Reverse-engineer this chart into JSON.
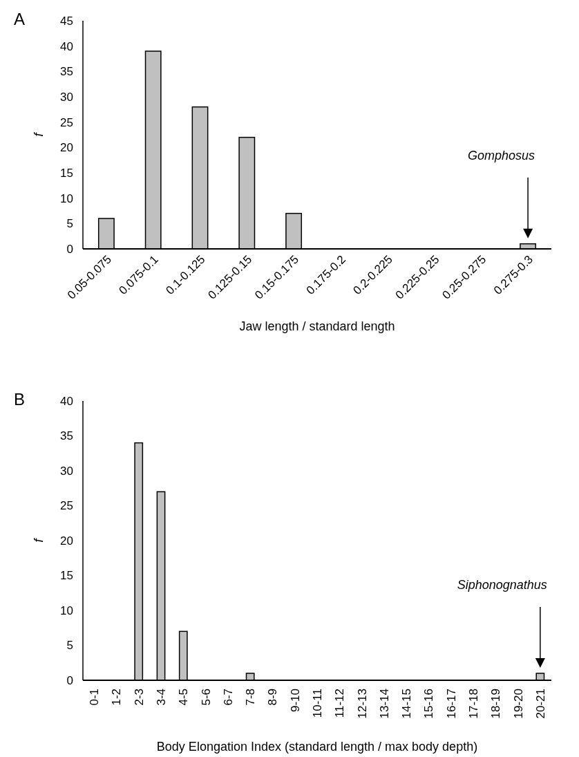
{
  "chart_data": [
    {
      "type": "bar",
      "title": "A",
      "xlabel": "Jaw length / standard length",
      "ylabel": "f",
      "categories": [
        "0.05-0.075",
        "0.075-0.1",
        "0.1-0.125",
        "0.125-0.15",
        "0.15-0.175",
        "0.175-0.2",
        "0.2-0.225",
        "0.225-0.25",
        "0.25-0.275",
        "0.275-0.3"
      ],
      "values": [
        6,
        39,
        28,
        22,
        7,
        0,
        0,
        0,
        0,
        1
      ],
      "color": "#c0c0c0",
      "ylim": [
        0,
        45
      ],
      "yticks": [
        0,
        5,
        10,
        15,
        20,
        25,
        30,
        35,
        40,
        45
      ],
      "grid": false,
      "annotations": [
        "Gomphosus"
      ]
    },
    {
      "type": "bar",
      "title": "B",
      "xlabel": "Body Elongation Index (standard length / max body depth)",
      "ylabel": "f",
      "categories": [
        "0-1",
        "1-2",
        "2-3",
        "3-4",
        "4-5",
        "5-6",
        "6-7",
        "7-8",
        "8-9",
        "9-10",
        "10-11",
        "11-12",
        "12-13",
        "13-14",
        "14-15",
        "15-16",
        "16-17",
        "17-18",
        "18-19",
        "19-20",
        "20-21"
      ],
      "values": [
        0,
        0,
        34,
        27,
        7,
        0,
        0,
        1,
        0,
        0,
        0,
        0,
        0,
        0,
        0,
        0,
        0,
        0,
        0,
        0,
        1
      ],
      "color": "#c0c0c0",
      "ylim": [
        0,
        40
      ],
      "yticks": [
        0,
        5,
        10,
        15,
        20,
        25,
        30,
        35,
        40
      ],
      "grid": false,
      "annotations": [
        "Siphonognathus"
      ]
    }
  ]
}
